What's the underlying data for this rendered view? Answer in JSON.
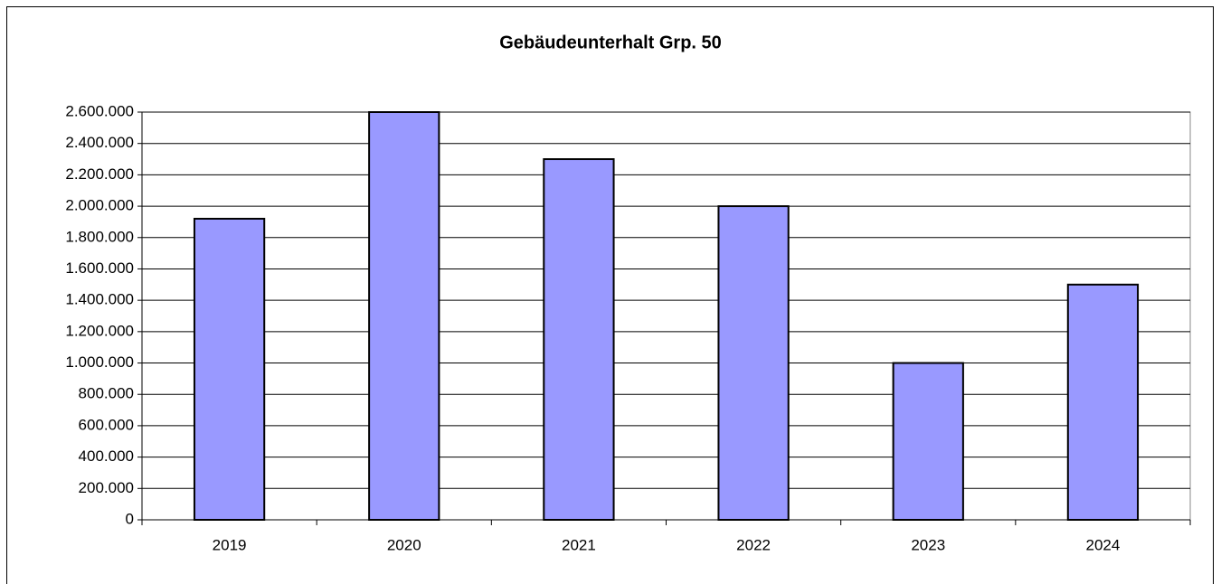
{
  "chart_data": {
    "type": "bar",
    "title": "Gebäudeunterhalt Grp. 50",
    "categories": [
      "2019",
      "2020",
      "2021",
      "2022",
      "2023",
      "2024"
    ],
    "values": [
      1920000,
      2600000,
      2300000,
      2000000,
      1000000,
      1500000
    ],
    "color": "#9999ff",
    "ylim": [
      0,
      2600000
    ],
    "yticks": [
      0,
      {
        "value": 200000,
        "label": "200.000"
      },
      {
        "value": 400000,
        "label": "400.000"
      },
      {
        "value": 600000,
        "label": "600.000"
      },
      {
        "value": 800000,
        "label": "800.000"
      },
      {
        "value": 1000000,
        "label": "1.000.000"
      },
      {
        "value": 1200000,
        "label": "1.200.000"
      },
      {
        "value": 1400000,
        "label": "1.400.000"
      },
      {
        "value": 1600000,
        "label": "1.600.000"
      },
      {
        "value": 1800000,
        "label": "1.800.000"
      },
      {
        "value": 2000000,
        "label": "2.000.000"
      },
      {
        "value": 2200000,
        "label": "2.200.000"
      },
      {
        "value": 2400000,
        "label": "2.400.000"
      },
      {
        "value": 2600000,
        "label": "2.600.000"
      }
    ],
    "grid": true
  }
}
